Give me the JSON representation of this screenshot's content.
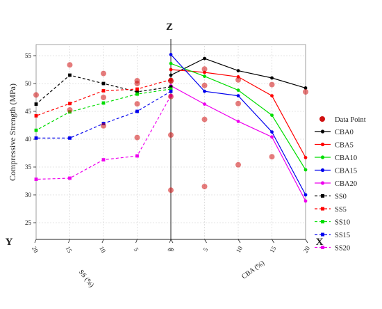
{
  "chart_data": {
    "type": "line",
    "axis_letters": {
      "z": "Z",
      "x": "X",
      "y": "Y"
    },
    "zlabel": "Compressive Strength (MPa)",
    "xlabel": "CBA (%)",
    "ylabel": "SS (%)",
    "zlim": [
      22,
      57
    ],
    "z_ticks": [
      25,
      30,
      35,
      40,
      45,
      50,
      55
    ],
    "x_ticks": [
      0,
      5,
      10,
      15,
      20
    ],
    "y_ticks": [
      0,
      5,
      10,
      15,
      20
    ],
    "grid": true,
    "legend_position": "right",
    "legend": {
      "data_point": "Data Point",
      "entries": [
        "CBA0",
        "CBA5",
        "CBA10",
        "CBA15",
        "CBA20",
        "SS0",
        "SS5",
        "SS10",
        "SS15",
        "SS20"
      ]
    },
    "colors": {
      "level0": "#000000",
      "level5": "#ff0000",
      "level10": "#00dd00",
      "level15": "#0000ee",
      "level20": "#ee00ee",
      "data_point": "#d01010"
    },
    "cba_series": [
      {
        "name": "CBA0",
        "x": [
          0,
          5,
          10,
          15,
          20
        ],
        "z": [
          51.5,
          54.5,
          52.3,
          51.0,
          49.2
        ]
      },
      {
        "name": "CBA5",
        "x": [
          0,
          5,
          10,
          15,
          20
        ],
        "z": [
          52.5,
          52.0,
          51.2,
          47.8,
          36.7
        ]
      },
      {
        "name": "CBA10",
        "x": [
          0,
          5,
          10,
          15,
          20
        ],
        "z": [
          53.6,
          51.3,
          48.8,
          44.3,
          34.5
        ]
      },
      {
        "name": "CBA15",
        "x": [
          0,
          5,
          10,
          15,
          20
        ],
        "z": [
          55.2,
          48.6,
          47.8,
          41.3,
          30.0
        ]
      },
      {
        "name": "CBA20",
        "x": [
          0,
          5,
          10,
          15,
          20
        ],
        "z": [
          49.6,
          46.3,
          43.2,
          40.4,
          28.9
        ]
      }
    ],
    "ss_series": [
      {
        "name": "SS0",
        "y": [
          0,
          5,
          10,
          15,
          20
        ],
        "z": [
          49.4,
          48.5,
          50.0,
          51.5,
          46.3
        ]
      },
      {
        "name": "SS5",
        "y": [
          0,
          5,
          10,
          15,
          20
        ],
        "z": [
          50.7,
          49.0,
          48.7,
          46.4,
          44.2
        ]
      },
      {
        "name": "SS10",
        "y": [
          0,
          5,
          10,
          15,
          20
        ],
        "z": [
          49.0,
          48.1,
          46.5,
          44.9,
          41.6
        ]
      },
      {
        "name": "SS15",
        "y": [
          0,
          5,
          10,
          15,
          20
        ],
        "z": [
          48.6,
          45.0,
          42.8,
          40.2,
          40.2
        ]
      },
      {
        "name": "SS20",
        "y": [
          0,
          5,
          10,
          15,
          20
        ],
        "z": [
          47.8,
          37.0,
          36.3,
          33.0,
          32.8
        ]
      }
    ]
  }
}
